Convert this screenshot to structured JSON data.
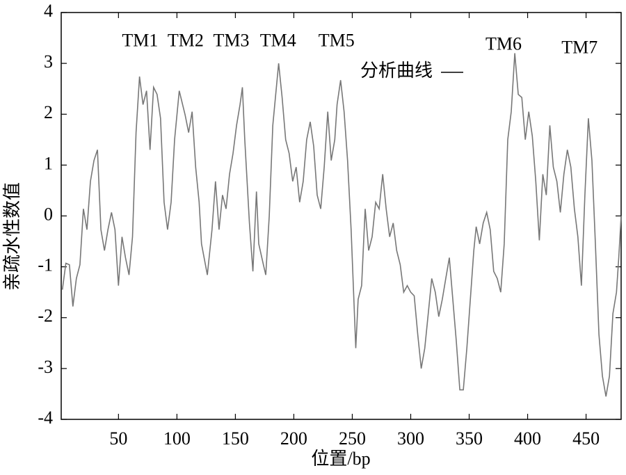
{
  "chart_data": {
    "type": "line",
    "xlabel": "位置/bp",
    "ylabel": "亲疏水性数值",
    "xlim": [
      1,
      480
    ],
    "ylim": [
      -4,
      4
    ],
    "xticks": [
      50,
      100,
      150,
      200,
      250,
      300,
      350,
      400,
      450
    ],
    "yticks": [
      -4,
      -3,
      -2,
      -1,
      0,
      1,
      2,
      3,
      4
    ],
    "grid": false,
    "legend": "upper center",
    "x": [
      2,
      5,
      8,
      11,
      14,
      17,
      20,
      23,
      26,
      29,
      32,
      35,
      38,
      41,
      44,
      47,
      50,
      53,
      56,
      59,
      62,
      65,
      68,
      71,
      74,
      77,
      80,
      83,
      86,
      89,
      92,
      95,
      98,
      102,
      107,
      110,
      113,
      116,
      119,
      121,
      126,
      130,
      133,
      136,
      139,
      142,
      145,
      148,
      151,
      154,
      156,
      158,
      162,
      165,
      168,
      170,
      174,
      176,
      179,
      182,
      187,
      190,
      193,
      196,
      199,
      202,
      205,
      208,
      211,
      214,
      217,
      220,
      223,
      226,
      229,
      232,
      235,
      237,
      240,
      243,
      246,
      249,
      253,
      255,
      258,
      261,
      264,
      267,
      270,
      273,
      276,
      279,
      282,
      285,
      288,
      291,
      294,
      297,
      300,
      303,
      306,
      309,
      312,
      315,
      318,
      321,
      324,
      327,
      330,
      333,
      336,
      339,
      342,
      345,
      348,
      351,
      354,
      356,
      359,
      362,
      365,
      368,
      371,
      374,
      377,
      380,
      383,
      386,
      389,
      392,
      395,
      398,
      401,
      404,
      407,
      410,
      413,
      416,
      419,
      422,
      425,
      428,
      431,
      434,
      437,
      440,
      443,
      446,
      449,
      452,
      455,
      458,
      461,
      464,
      467,
      470,
      473,
      476,
      478,
      480
    ],
    "series": [
      {
        "name": "分析曲线",
        "color": "#777777",
        "values": [
          -1.45,
          -0.93,
          -0.96,
          -1.78,
          -1.23,
          -0.96,
          0.14,
          -0.27,
          0.68,
          1.09,
          1.3,
          -0.27,
          -0.68,
          -0.27,
          0.07,
          -0.27,
          -1.37,
          -0.41,
          -0.82,
          -1.16,
          -0.41,
          1.64,
          2.74,
          2.19,
          2.46,
          1.3,
          2.53,
          2.39,
          1.92,
          0.27,
          -0.27,
          0.27,
          1.5,
          2.46,
          1.99,
          1.64,
          2.05,
          0.96,
          0.27,
          -0.55,
          -1.16,
          -0.27,
          0.68,
          -0.27,
          0.41,
          0.14,
          0.82,
          1.23,
          1.78,
          2.19,
          2.53,
          1.5,
          -0.14,
          -1.09,
          0.48,
          -0.55,
          -0.96,
          -1.16,
          0,
          1.78,
          3.0,
          2.33,
          1.5,
          1.23,
          0.68,
          0.96,
          0.27,
          0.68,
          1.5,
          1.85,
          1.37,
          0.41,
          0.14,
          0.96,
          2.05,
          1.09,
          1.5,
          2.19,
          2.67,
          2.05,
          1.09,
          -0.27,
          -2.6,
          -1.64,
          -1.37,
          0.14,
          -0.68,
          -0.41,
          0.27,
          0.14,
          0.82,
          0.14,
          -0.41,
          -0.14,
          -0.68,
          -0.96,
          -1.5,
          -1.37,
          -1.5,
          -1.57,
          -2.33,
          -3.0,
          -2.6,
          -1.92,
          -1.23,
          -1.5,
          -1.98,
          -1.64,
          -1.23,
          -0.82,
          -1.64,
          -2.46,
          -3.42,
          -3.42,
          -2.6,
          -1.64,
          -0.68,
          -0.21,
          -0.55,
          -0.14,
          0.07,
          -0.27,
          -1.09,
          -1.23,
          -1.5,
          -0.55,
          1.5,
          2.05,
          3.2,
          2.39,
          2.33,
          1.5,
          2.05,
          1.57,
          0.68,
          -0.48,
          0.82,
          0.41,
          1.78,
          0.96,
          0.68,
          0.07,
          0.82,
          1.3,
          0.96,
          0.14,
          -0.41,
          -1.37,
          0.41,
          1.92,
          1.09,
          -0.55,
          -2.33,
          -3.15,
          -3.55,
          -3.15,
          -1.92,
          -1.5,
          -0.82,
          0
        ]
      }
    ],
    "annotations": [
      {
        "text": "TM1",
        "x": 53,
        "y": 3.42
      },
      {
        "text": "TM2",
        "x": 92,
        "y": 3.42
      },
      {
        "text": "TM3",
        "x": 131,
        "y": 3.42
      },
      {
        "text": "TM4",
        "x": 171,
        "y": 3.42
      },
      {
        "text": "TM5",
        "x": 221,
        "y": 3.42
      },
      {
        "text": "TM6",
        "x": 364,
        "y": 3.35
      },
      {
        "text": "TM7",
        "x": 429,
        "y": 3.28
      }
    ]
  }
}
